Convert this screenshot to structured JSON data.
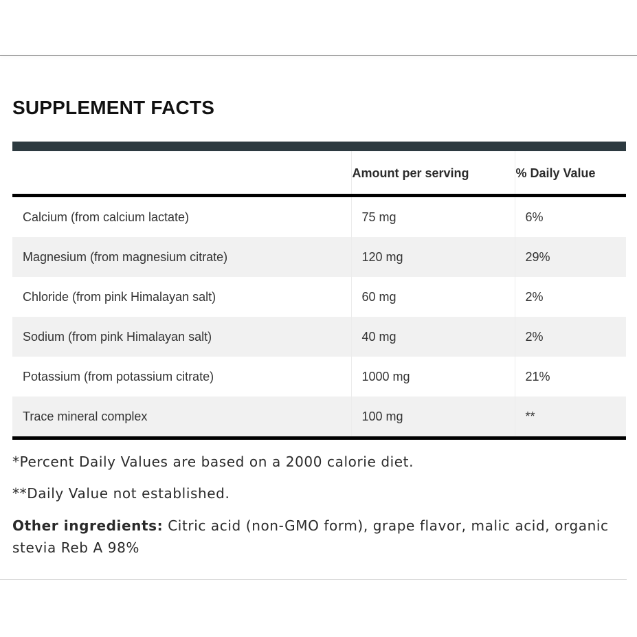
{
  "title": "SUPPLEMENT FACTS",
  "table": {
    "headers": {
      "nutrient": "",
      "amount": "Amount per serving",
      "daily_value": "% Daily Value"
    },
    "rows": [
      {
        "nutrient": "Calcium (from calcium lactate)",
        "amount": "75 mg",
        "daily_value": "6%"
      },
      {
        "nutrient": "Magnesium (from magnesium citrate)",
        "amount": "120 mg",
        "daily_value": "29%"
      },
      {
        "nutrient": "Chloride (from pink Himalayan salt)",
        "amount": "60 mg",
        "daily_value": "2%"
      },
      {
        "nutrient": "Sodium (from pink Himalayan salt)",
        "amount": "40 mg",
        "daily_value": "2%"
      },
      {
        "nutrient": "Potassium (from potassium citrate)",
        "amount": "1000 mg",
        "daily_value": "21%"
      },
      {
        "nutrient": "Trace mineral complex",
        "amount": "100 mg",
        "daily_value": "**"
      }
    ]
  },
  "notes": {
    "percent_note": "*Percent Daily Values are based on a 2000 calorie diet.",
    "not_established": "**Daily Value not established.",
    "other_ingredients_label": "Other ingredients:",
    "other_ingredients_text": " Citric acid (non-GMO form), grape flavor, malic acid, organic stevia Reb A 98%"
  },
  "colors": {
    "header_bar": "#2d3a40",
    "row_stripe": "#f1f1f1",
    "heavy_rule": "#000000"
  }
}
